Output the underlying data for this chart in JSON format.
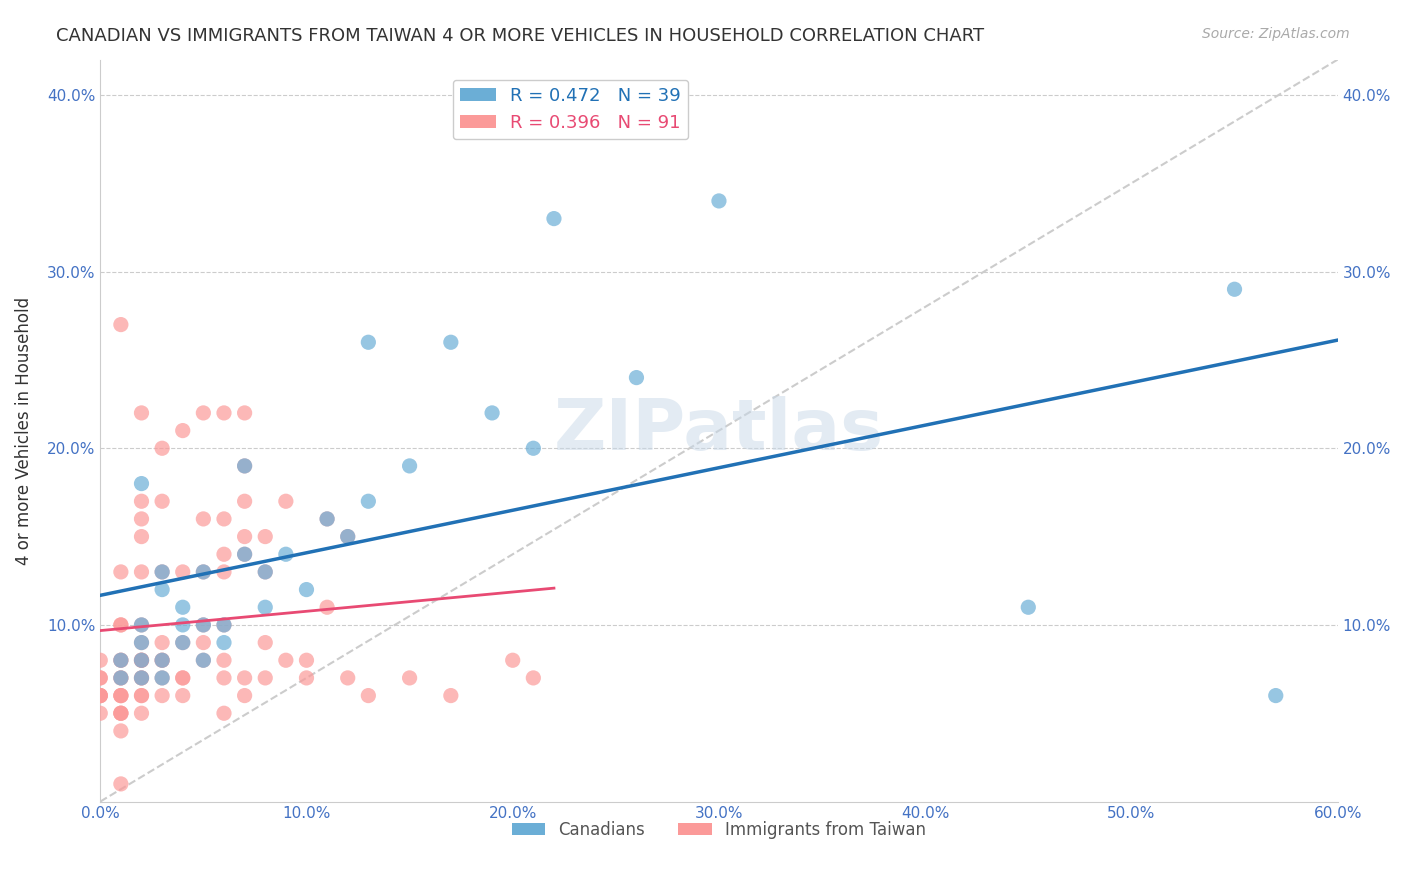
{
  "title": "CANADIAN VS IMMIGRANTS FROM TAIWAN 4 OR MORE VEHICLES IN HOUSEHOLD CORRELATION CHART",
  "source": "Source: ZipAtlas.com",
  "ylabel": "4 or more Vehicles in Household",
  "xlim": [
    0.0,
    0.6
  ],
  "ylim": [
    0.0,
    0.42
  ],
  "xticks": [
    0.0,
    0.1,
    0.2,
    0.3,
    0.4,
    0.5,
    0.6
  ],
  "yticks": [
    0.1,
    0.2,
    0.3,
    0.4
  ],
  "xticklabels": [
    "0.0%",
    "10.0%",
    "20.0%",
    "30.0%",
    "40.0%",
    "50.0%",
    "60.0%"
  ],
  "yticklabels": [
    "10.0%",
    "20.0%",
    "30.0%",
    "40.0%"
  ],
  "canadians_R": 0.472,
  "canadians_N": 39,
  "taiwan_R": 0.396,
  "taiwan_N": 91,
  "canadian_color": "#6baed6",
  "taiwan_color": "#fb9a99",
  "canadian_line_color": "#2171b5",
  "taiwan_line_color": "#e84a73",
  "diagonal_color": "#cccccc",
  "background_color": "#ffffff",
  "tick_color": "#4472c4",
  "canadians_x": [
    0.01,
    0.01,
    0.02,
    0.02,
    0.02,
    0.02,
    0.02,
    0.03,
    0.03,
    0.03,
    0.03,
    0.04,
    0.04,
    0.04,
    0.05,
    0.05,
    0.05,
    0.06,
    0.06,
    0.07,
    0.07,
    0.08,
    0.08,
    0.09,
    0.1,
    0.11,
    0.12,
    0.13,
    0.13,
    0.15,
    0.17,
    0.19,
    0.21,
    0.22,
    0.26,
    0.3,
    0.45,
    0.55,
    0.57
  ],
  "canadians_y": [
    0.07,
    0.08,
    0.07,
    0.08,
    0.09,
    0.1,
    0.18,
    0.07,
    0.08,
    0.12,
    0.13,
    0.09,
    0.1,
    0.11,
    0.08,
    0.1,
    0.13,
    0.09,
    0.1,
    0.14,
    0.19,
    0.11,
    0.13,
    0.14,
    0.12,
    0.16,
    0.15,
    0.17,
    0.26,
    0.19,
    0.26,
    0.22,
    0.2,
    0.33,
    0.24,
    0.34,
    0.11,
    0.29,
    0.06
  ],
  "taiwan_x": [
    0.0,
    0.0,
    0.0,
    0.0,
    0.0,
    0.0,
    0.0,
    0.0,
    0.01,
    0.01,
    0.01,
    0.01,
    0.01,
    0.01,
    0.01,
    0.01,
    0.01,
    0.01,
    0.01,
    0.01,
    0.01,
    0.01,
    0.01,
    0.01,
    0.02,
    0.02,
    0.02,
    0.02,
    0.02,
    0.02,
    0.02,
    0.02,
    0.02,
    0.02,
    0.02,
    0.02,
    0.02,
    0.02,
    0.02,
    0.03,
    0.03,
    0.03,
    0.03,
    0.03,
    0.03,
    0.03,
    0.03,
    0.04,
    0.04,
    0.04,
    0.04,
    0.04,
    0.04,
    0.05,
    0.05,
    0.05,
    0.05,
    0.05,
    0.05,
    0.06,
    0.06,
    0.06,
    0.06,
    0.06,
    0.06,
    0.06,
    0.06,
    0.07,
    0.07,
    0.07,
    0.07,
    0.07,
    0.07,
    0.07,
    0.08,
    0.08,
    0.08,
    0.08,
    0.09,
    0.09,
    0.1,
    0.1,
    0.11,
    0.11,
    0.12,
    0.12,
    0.13,
    0.15,
    0.17,
    0.2,
    0.21
  ],
  "taiwan_y": [
    0.05,
    0.06,
    0.06,
    0.06,
    0.06,
    0.07,
    0.07,
    0.08,
    0.04,
    0.05,
    0.05,
    0.05,
    0.06,
    0.06,
    0.06,
    0.07,
    0.07,
    0.08,
    0.08,
    0.1,
    0.1,
    0.13,
    0.27,
    0.01,
    0.05,
    0.06,
    0.06,
    0.07,
    0.07,
    0.08,
    0.08,
    0.08,
    0.09,
    0.1,
    0.13,
    0.15,
    0.16,
    0.17,
    0.22,
    0.06,
    0.07,
    0.08,
    0.08,
    0.09,
    0.13,
    0.17,
    0.2,
    0.06,
    0.07,
    0.07,
    0.09,
    0.13,
    0.21,
    0.08,
    0.09,
    0.1,
    0.13,
    0.16,
    0.22,
    0.05,
    0.07,
    0.08,
    0.1,
    0.13,
    0.14,
    0.16,
    0.22,
    0.06,
    0.07,
    0.14,
    0.15,
    0.17,
    0.19,
    0.22,
    0.07,
    0.09,
    0.13,
    0.15,
    0.08,
    0.17,
    0.07,
    0.08,
    0.11,
    0.16,
    0.07,
    0.15,
    0.06,
    0.07,
    0.06,
    0.08,
    0.07
  ]
}
